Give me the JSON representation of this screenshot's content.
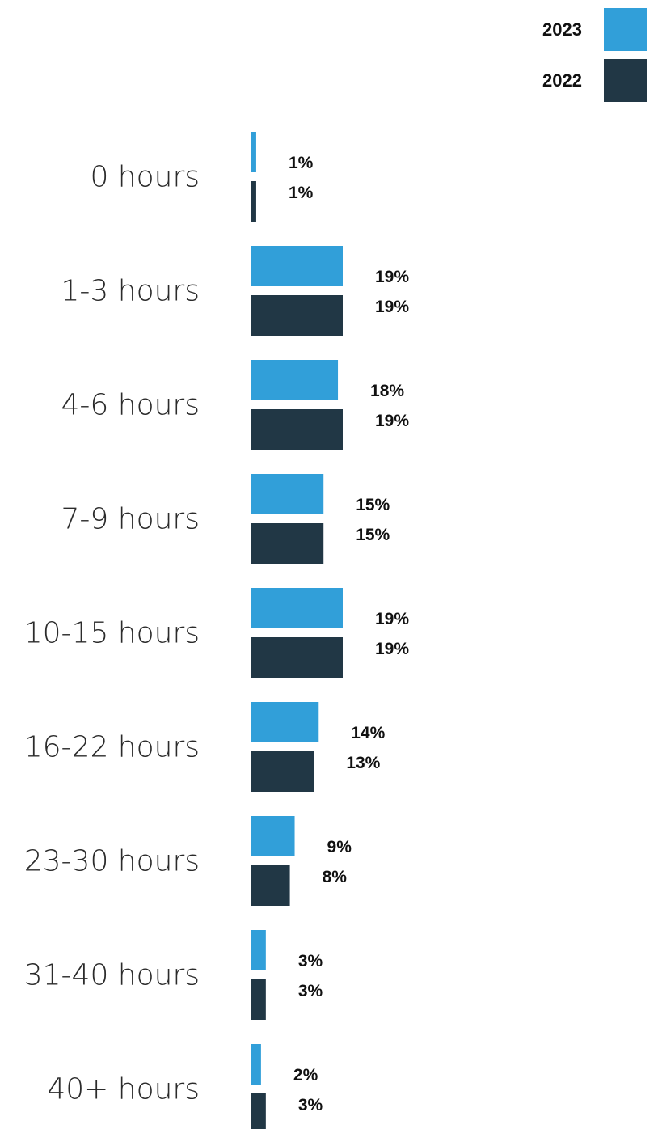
{
  "colors": {
    "series_2023": "#319fd9",
    "series_2022": "#213745",
    "background": "#ffffff"
  },
  "legend": {
    "placement": "top-right",
    "items": [
      {
        "label": "2023",
        "color": "#319fd9"
      },
      {
        "label": "2022",
        "color": "#213745"
      }
    ]
  },
  "chart_data": {
    "type": "bar",
    "orientation": "horizontal",
    "title": "",
    "xlabel": "",
    "ylabel": "",
    "xlim": [
      0,
      19
    ],
    "grid": false,
    "categories": [
      "0 hours",
      "1-3 hours",
      "4-6 hours",
      "7-9 hours",
      "10-15 hours",
      "16-22 hours",
      "23-30 hours",
      "31-40 hours",
      "40+ hours"
    ],
    "series": [
      {
        "name": "2023",
        "color": "#319fd9",
        "values": [
          1,
          19,
          18,
          15,
          19,
          14,
          9,
          3,
          2
        ],
        "labels": [
          "1%",
          "19%",
          "18%",
          "15%",
          "19%",
          "14%",
          "9%",
          "3%",
          "2%"
        ]
      },
      {
        "name": "2022",
        "color": "#213745",
        "values": [
          1,
          19,
          19,
          15,
          19,
          13,
          8,
          3,
          3
        ],
        "labels": [
          "1%",
          "19%",
          "19%",
          "15%",
          "19%",
          "13%",
          "8%",
          "3%",
          "3%"
        ]
      }
    ]
  }
}
